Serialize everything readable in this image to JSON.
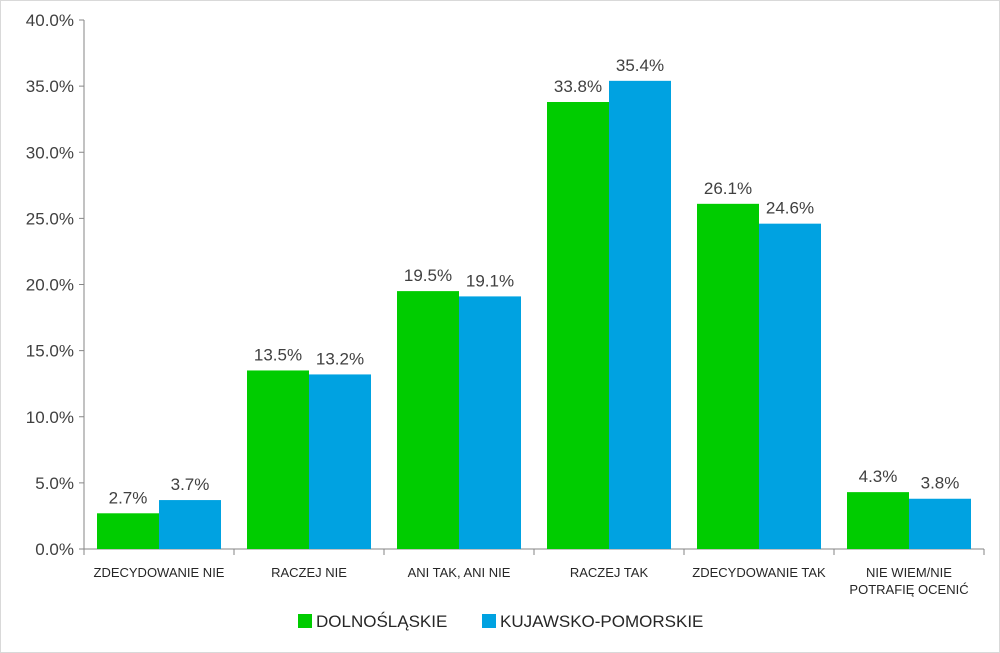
{
  "chart_data": {
    "type": "bar",
    "title": "",
    "xlabel": "",
    "ylabel": "",
    "ylim": [
      0,
      40
    ],
    "y_ticks": [
      "0.0%",
      "5.0%",
      "10.0%",
      "15.0%",
      "20.0%",
      "25.0%",
      "30.0%",
      "35.0%",
      "40.0%"
    ],
    "categories": [
      [
        "ZDECYDOWANIE NIE"
      ],
      [
        "RACZEJ NIE"
      ],
      [
        "ANI TAK, ANI NIE"
      ],
      [
        "RACZEJ TAK"
      ],
      [
        "ZDECYDOWANIE TAK"
      ],
      [
        "NIE WIEM/NIE",
        "POTRAFIĘ OCENIĆ"
      ]
    ],
    "series": [
      {
        "name": "DOLNOŚLĄSKIE",
        "color": "#00cc00",
        "values": [
          2.7,
          13.5,
          19.5,
          33.8,
          26.1,
          4.3
        ],
        "labels": [
          "2.7%",
          "13.5%",
          "19.5%",
          "33.8%",
          "26.1%",
          "4.3%"
        ]
      },
      {
        "name": "KUJAWSKO-POMORSKIE",
        "color": "#00a2e1",
        "values": [
          3.7,
          13.2,
          19.1,
          35.4,
          24.6,
          3.8
        ],
        "labels": [
          "3.7%",
          "13.2%",
          "19.1%",
          "35.4%",
          "24.6%",
          "3.8%"
        ]
      }
    ],
    "grid": false,
    "legend_position": "bottom"
  }
}
